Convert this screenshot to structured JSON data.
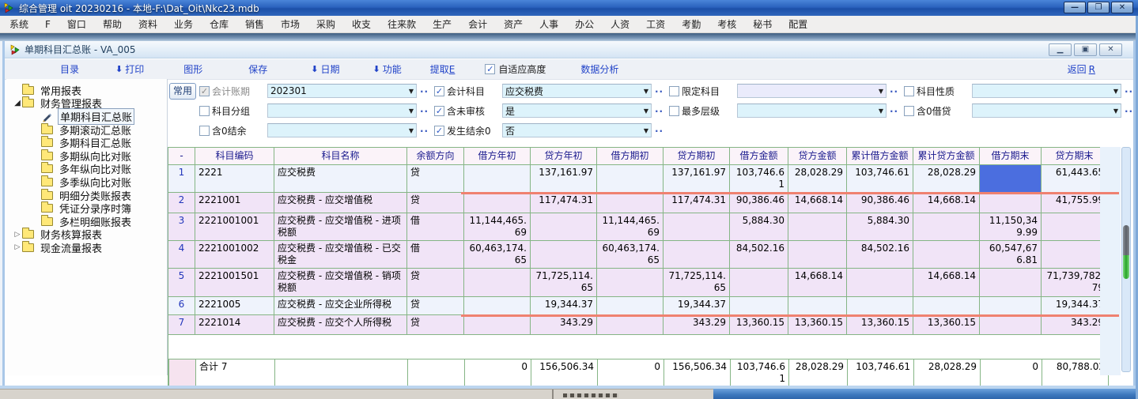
{
  "window": {
    "title": "综合管理 oit 20230216 - 本地-F:\\Dat_Oit\\Nkc23.mdb",
    "buttons": {
      "minimize": "—",
      "restore": "❐",
      "close": "✕"
    }
  },
  "menu": {
    "items": [
      "系统",
      "F",
      "窗口",
      "帮助",
      "资料",
      "业务",
      "仓库",
      "销售",
      "市场",
      "采购",
      "收支",
      "往来款",
      "生产",
      "会计",
      "资产",
      "人事",
      "办公",
      "人资",
      "工资",
      "考勤",
      "考核",
      "秘书",
      "配置"
    ]
  },
  "child_window": {
    "title": "单期科目汇总账 - VA_005",
    "buttons": {
      "minimize": "▁",
      "restore": "▣",
      "close": "✕"
    }
  },
  "toolbar": {
    "items": [
      {
        "label": "目录",
        "arrow": false
      },
      {
        "label": "打印",
        "arrow": true
      },
      {
        "label": "图形",
        "arrow": false
      },
      {
        "label": "保存",
        "arrow": false
      },
      {
        "label": "日期",
        "arrow": true
      },
      {
        "label": "功能",
        "arrow": true
      },
      {
        "label": "提取",
        "accel": "E",
        "arrow": false
      }
    ],
    "auto_height": {
      "label": "自适应高度",
      "checked": true
    },
    "data_analysis": "数据分析",
    "back": {
      "label": "返回",
      "accel": "R"
    }
  },
  "filters": {
    "common_button": "常用",
    "rows": [
      [
        {
          "label": "会计账期",
          "checked": true,
          "disabled": true,
          "value": "202301",
          "variant": "cyan"
        },
        {
          "label": "会计科目",
          "checked": true,
          "disabled": false,
          "value": "应交税费",
          "variant": "cyan"
        },
        {
          "label": "限定科目",
          "checked": false,
          "disabled": false,
          "value": "",
          "variant": "lavender"
        },
        {
          "label": "科目性质",
          "checked": false,
          "disabled": false,
          "value": "",
          "variant": "cyan"
        }
      ],
      [
        {
          "label": "科目分组",
          "checked": false,
          "disabled": false,
          "value": "",
          "variant": "cyan"
        },
        {
          "label": "含未审核",
          "checked": true,
          "disabled": false,
          "value": "是",
          "variant": "cyan"
        },
        {
          "label": "最多层级",
          "checked": false,
          "disabled": false,
          "value": "",
          "variant": "cyan"
        },
        {
          "label": "含0借贷",
          "checked": false,
          "disabled": false,
          "value": "",
          "variant": "cyan"
        }
      ],
      [
        {
          "label": "含0结余",
          "checked": false,
          "disabled": false,
          "value": "",
          "variant": "cyan"
        },
        {
          "label": "发生结余0",
          "checked": true,
          "disabled": false,
          "value": "否",
          "variant": "cyan"
        }
      ]
    ]
  },
  "sidebar": {
    "items": [
      {
        "label": "常用报表",
        "level": 0,
        "icon": "folder",
        "expander": "none",
        "selected": false
      },
      {
        "label": "财务管理报表",
        "level": 0,
        "icon": "folder",
        "expander": "expanded",
        "selected": false
      },
      {
        "label": "单期科目汇总账",
        "level": 1,
        "icon": "pen",
        "expander": "none",
        "selected": true
      },
      {
        "label": "多期滚动汇总账",
        "level": 1,
        "icon": "folder",
        "expander": "none",
        "selected": false
      },
      {
        "label": "多期科目汇总账",
        "level": 1,
        "icon": "folder",
        "expander": "none",
        "selected": false
      },
      {
        "label": "多期纵向比对账",
        "level": 1,
        "icon": "folder",
        "expander": "none",
        "selected": false
      },
      {
        "label": "多年纵向比对账",
        "level": 1,
        "icon": "folder",
        "expander": "none",
        "selected": false
      },
      {
        "label": "多季纵向比对账",
        "level": 1,
        "icon": "folder",
        "expander": "none",
        "selected": false
      },
      {
        "label": "明细分类账报表",
        "level": 1,
        "icon": "folder",
        "expander": "none",
        "selected": false
      },
      {
        "label": "凭证分录序时簿",
        "level": 1,
        "icon": "folder",
        "expander": "none",
        "selected": false
      },
      {
        "label": "多栏明细账报表",
        "level": 1,
        "icon": "folder",
        "expander": "none",
        "selected": false
      },
      {
        "label": "财务核算报表",
        "level": 0,
        "icon": "folder",
        "expander": "collapsed",
        "selected": false
      },
      {
        "label": "现金流量报表",
        "level": 0,
        "icon": "folder",
        "expander": "collapsed",
        "selected": false
      }
    ]
  },
  "table": {
    "headers": [
      "-",
      "科目编码",
      "科目名称",
      "余额方向",
      "借方年初",
      "贷方年初",
      "借方期初",
      "贷方期初",
      "借方金额",
      "贷方金额",
      "累计借方金额",
      "累计贷方金额",
      "借方期末",
      "贷方期末"
    ],
    "rows": [
      {
        "num": "1",
        "cells": [
          "2221",
          "应交税费",
          "贷",
          "",
          "137,161.97",
          "",
          "137,161.97",
          "103,746.61",
          "28,028.29",
          "103,746.61",
          "28,028.29",
          "",
          "61,443.65"
        ],
        "style": "light",
        "redline": true,
        "selected_col": 11
      },
      {
        "num": "2",
        "cells": [
          "2221001",
          "应交税费 - 应交增值税",
          "贷",
          "",
          "117,474.31",
          "",
          "117,474.31",
          "90,386.46",
          "14,668.14",
          "90,386.46",
          "14,668.14",
          "",
          "41,755.99"
        ],
        "style": "lavender",
        "redline": false,
        "selected_col": -1
      },
      {
        "num": "3",
        "cells": [
          "2221001001",
          "应交税费 - 应交增值税 - 进项税额",
          "借",
          "11,144,465.69",
          "",
          "11,144,465.69",
          "",
          "5,884.30",
          "",
          "5,884.30",
          "",
          "11,150,349.99",
          ""
        ],
        "style": "lavender",
        "redline": false,
        "selected_col": -1
      },
      {
        "num": "4",
        "cells": [
          "2221001002",
          "应交税费 - 应交增值税 - 已交税金",
          "借",
          "60,463,174.65",
          "",
          "60,463,174.65",
          "",
          "84,502.16",
          "",
          "84,502.16",
          "",
          "60,547,676.81",
          ""
        ],
        "style": "lavender",
        "redline": false,
        "selected_col": -1
      },
      {
        "num": "5",
        "cells": [
          "2221001501",
          "应交税费 - 应交增值税 - 销项税额",
          "贷",
          "",
          "71,725,114.65",
          "",
          "71,725,114.65",
          "",
          "14,668.14",
          "",
          "14,668.14",
          "",
          "71,739,782.79"
        ],
        "style": "lavender",
        "redline": false,
        "selected_col": -1
      },
      {
        "num": "6",
        "cells": [
          "2221005",
          "应交税费 - 应交企业所得税",
          "贷",
          "",
          "19,344.37",
          "",
          "19,344.37",
          "",
          "",
          "",
          "",
          "",
          "19,344.37"
        ],
        "style": "light",
        "redline": true,
        "selected_col": -1
      },
      {
        "num": "7",
        "cells": [
          "2221014",
          "应交税费 - 应交个人所得税",
          "贷",
          "",
          "343.29",
          "",
          "343.29",
          "13,360.15",
          "13,360.15",
          "13,360.15",
          "13,360.15",
          "",
          "343.29"
        ],
        "style": "lavender",
        "redline": false,
        "selected_col": -1
      }
    ],
    "total": {
      "label": "合计 7",
      "cells": [
        "",
        "",
        "0",
        "156,506.34",
        "0",
        "156,506.34",
        "103,746.61",
        "28,028.29",
        "103,746.61",
        "28,028.29",
        "0",
        "80,788.02"
      ]
    }
  },
  "colors": {
    "grid_green": "#85b585",
    "row_lavender": "#f1e4f7",
    "row_light": "#eff3fc",
    "selected_cell_blue": "#4b6edf",
    "annotation_red": "#ef8170",
    "link_blue": "#2143c8",
    "titlebar_blue": "#2b63be"
  }
}
